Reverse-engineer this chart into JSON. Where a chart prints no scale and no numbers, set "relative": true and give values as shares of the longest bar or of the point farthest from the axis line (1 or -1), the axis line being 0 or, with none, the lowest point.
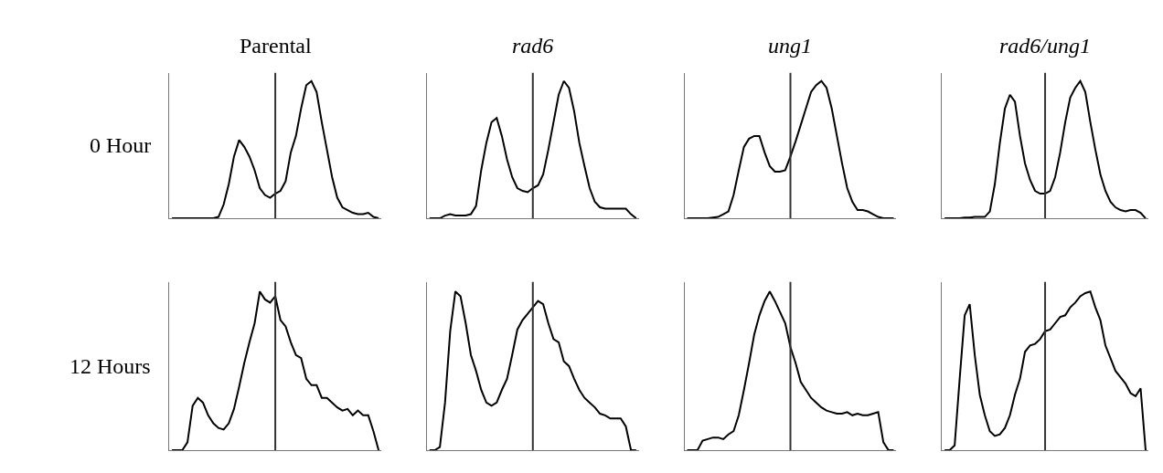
{
  "chart_data": [
    {
      "type": "line",
      "title": "Parental",
      "ylabel": "0 Hour",
      "relative": true,
      "color": "#000000",
      "categories": [
        null,
        null,
        null,
        null,
        null,
        null,
        null,
        null,
        null,
        null,
        null,
        null,
        null,
        null,
        null,
        null,
        null,
        null,
        null,
        null,
        null,
        null,
        null,
        null,
        null,
        null,
        null,
        null,
        null,
        null,
        null,
        null,
        null,
        null,
        null,
        null,
        null,
        null,
        null,
        null,
        null
      ],
      "values": [
        0,
        0,
        0,
        0,
        0,
        0,
        0,
        0,
        0,
        0.01,
        0.1,
        0.25,
        0.45,
        0.57,
        0.52,
        0.45,
        0.35,
        0.22,
        0.17,
        0.15,
        0.18,
        0.2,
        0.27,
        0.48,
        0.6,
        0.8,
        0.97,
        1.0,
        0.92,
        0.7,
        0.5,
        0.3,
        0.15,
        0.08,
        0.06,
        0.04,
        0.03,
        0.03,
        0.04,
        0.01,
        0
      ]
    },
    {
      "type": "line",
      "title": "rad6",
      "relative": true,
      "color": "#000000",
      "categories": [
        null,
        null,
        null,
        null,
        null,
        null,
        null,
        null,
        null,
        null,
        null,
        null,
        null,
        null,
        null,
        null,
        null,
        null,
        null,
        null,
        null,
        null,
        null,
        null,
        null,
        null,
        null,
        null,
        null,
        null,
        null,
        null,
        null,
        null,
        null,
        null,
        null,
        null,
        null,
        null,
        null
      ],
      "values": [
        0,
        0,
        0,
        0.02,
        0.03,
        0.02,
        0.02,
        0.02,
        0.03,
        0.09,
        0.35,
        0.55,
        0.7,
        0.73,
        0.6,
        0.43,
        0.3,
        0.22,
        0.2,
        0.19,
        0.22,
        0.24,
        0.32,
        0.5,
        0.7,
        0.9,
        1.0,
        0.95,
        0.78,
        0.55,
        0.38,
        0.22,
        0.12,
        0.08,
        0.07,
        0.07,
        0.07,
        0.07,
        0.07,
        0.03,
        0
      ]
    },
    {
      "type": "line",
      "title": "ung1",
      "relative": true,
      "color": "#000000",
      "categories": [
        null,
        null,
        null,
        null,
        null,
        null,
        null,
        null,
        null,
        null,
        null,
        null,
        null,
        null,
        null,
        null,
        null,
        null,
        null,
        null,
        null,
        null,
        null,
        null,
        null,
        null,
        null,
        null,
        null,
        null,
        null,
        null,
        null,
        null,
        null,
        null,
        null,
        null,
        null,
        null,
        null
      ],
      "values": [
        0,
        0,
        0,
        0,
        0,
        0.005,
        0.01,
        0.03,
        0.05,
        0.17,
        0.35,
        0.52,
        0.58,
        0.6,
        0.6,
        0.48,
        0.38,
        0.34,
        0.34,
        0.35,
        0.45,
        0.56,
        0.68,
        0.8,
        0.92,
        0.97,
        1.0,
        0.95,
        0.8,
        0.6,
        0.4,
        0.22,
        0.12,
        0.06,
        0.06,
        0.05,
        0.03,
        0.01,
        0,
        0,
        0
      ]
    },
    {
      "type": "line",
      "title": "rad6/ung1",
      "relative": true,
      "color": "#000000",
      "categories": [
        null,
        null,
        null,
        null,
        null,
        null,
        null,
        null,
        null,
        null,
        null,
        null,
        null,
        null,
        null,
        null,
        null,
        null,
        null,
        null,
        null,
        null,
        null,
        null,
        null,
        null,
        null,
        null,
        null,
        null,
        null,
        null,
        null,
        null,
        null,
        null,
        null,
        null,
        null,
        null,
        null
      ],
      "values": [
        0,
        0,
        0,
        0,
        0.005,
        0.005,
        0.01,
        0.01,
        0.01,
        0.05,
        0.25,
        0.55,
        0.8,
        0.9,
        0.85,
        0.6,
        0.4,
        0.28,
        0.2,
        0.18,
        0.18,
        0.2,
        0.3,
        0.48,
        0.7,
        0.88,
        0.95,
        1.0,
        0.92,
        0.7,
        0.5,
        0.32,
        0.2,
        0.12,
        0.08,
        0.06,
        0.05,
        0.06,
        0.06,
        0.04,
        0
      ]
    },
    {
      "type": "line",
      "ylabel": "12 Hours",
      "relative": true,
      "color": "#000000",
      "categories": [
        null,
        null,
        null,
        null,
        null,
        null,
        null,
        null,
        null,
        null,
        null,
        null,
        null,
        null,
        null,
        null,
        null,
        null,
        null,
        null,
        null,
        null,
        null,
        null,
        null,
        null,
        null,
        null,
        null,
        null,
        null,
        null,
        null,
        null,
        null,
        null,
        null,
        null,
        null,
        null,
        null
      ],
      "values": [
        0,
        0,
        0,
        0.05,
        0.28,
        0.33,
        0.3,
        0.22,
        0.17,
        0.14,
        0.13,
        0.17,
        0.26,
        0.4,
        0.55,
        0.68,
        0.8,
        1.0,
        0.95,
        0.93,
        0.97,
        0.82,
        0.78,
        0.68,
        0.6,
        0.58,
        0.45,
        0.41,
        0.41,
        0.33,
        0.33,
        0.3,
        0.27,
        0.25,
        0.26,
        0.22,
        0.25,
        0.22,
        0.22,
        0.12,
        0
      ]
    },
    {
      "type": "line",
      "relative": true,
      "color": "#000000",
      "categories": [
        null,
        null,
        null,
        null,
        null,
        null,
        null,
        null,
        null,
        null,
        null,
        null,
        null,
        null,
        null,
        null,
        null,
        null,
        null,
        null,
        null,
        null,
        null,
        null,
        null,
        null,
        null,
        null,
        null,
        null,
        null,
        null,
        null,
        null,
        null,
        null,
        null,
        null,
        null,
        null,
        null
      ],
      "values": [
        0,
        0,
        0.02,
        0.3,
        0.75,
        1.0,
        0.97,
        0.8,
        0.6,
        0.5,
        0.38,
        0.3,
        0.28,
        0.3,
        0.38,
        0.45,
        0.6,
        0.76,
        0.82,
        0.86,
        0.9,
        0.94,
        0.92,
        0.8,
        0.7,
        0.68,
        0.56,
        0.53,
        0.45,
        0.38,
        0.33,
        0.3,
        0.27,
        0.23,
        0.22,
        0.2,
        0.2,
        0.2,
        0.15,
        0,
        0
      ]
    },
    {
      "type": "line",
      "relative": true,
      "color": "#000000",
      "categories": [
        null,
        null,
        null,
        null,
        null,
        null,
        null,
        null,
        null,
        null,
        null,
        null,
        null,
        null,
        null,
        null,
        null,
        null,
        null,
        null,
        null,
        null,
        null,
        null,
        null,
        null,
        null,
        null,
        null,
        null,
        null,
        null,
        null,
        null,
        null,
        null,
        null,
        null,
        null,
        null,
        null
      ],
      "values": [
        0,
        0,
        0,
        0.06,
        0.07,
        0.08,
        0.08,
        0.07,
        0.1,
        0.12,
        0.22,
        0.38,
        0.55,
        0.73,
        0.85,
        0.94,
        1.0,
        0.94,
        0.87,
        0.8,
        0.65,
        0.55,
        0.43,
        0.38,
        0.33,
        0.3,
        0.27,
        0.25,
        0.24,
        0.23,
        0.23,
        0.24,
        0.22,
        0.23,
        0.22,
        0.22,
        0.23,
        0.24,
        0.05,
        0,
        0
      ]
    },
    {
      "type": "line",
      "relative": true,
      "color": "#000000",
      "categories": [
        null,
        null,
        null,
        null,
        null,
        null,
        null,
        null,
        null,
        null,
        null,
        null,
        null,
        null,
        null,
        null,
        null,
        null,
        null,
        null,
        null,
        null,
        null,
        null,
        null,
        null,
        null,
        null,
        null,
        null,
        null,
        null,
        null,
        null,
        null,
        null,
        null,
        null,
        null,
        null,
        null
      ],
      "values": [
        0,
        0,
        0.03,
        0.45,
        0.85,
        0.92,
        0.6,
        0.35,
        0.22,
        0.12,
        0.09,
        0.1,
        0.14,
        0.22,
        0.35,
        0.45,
        0.62,
        0.66,
        0.67,
        0.7,
        0.75,
        0.76,
        0.8,
        0.84,
        0.85,
        0.9,
        0.93,
        0.97,
        0.99,
        1.0,
        0.9,
        0.82,
        0.66,
        0.58,
        0.5,
        0.46,
        0.42,
        0.36,
        0.34,
        0.39,
        0
      ]
    }
  ]
}
